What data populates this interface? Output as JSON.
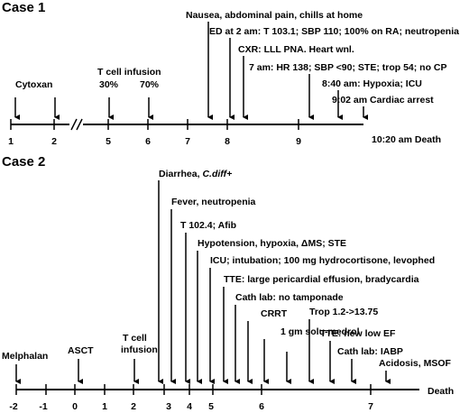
{
  "case1": {
    "title": "Case 1",
    "axis_end_label": "10:20 am Death",
    "ticks": [
      "1",
      "2",
      "5",
      "6",
      "7",
      "8",
      "9"
    ],
    "events": [
      {
        "text": "Cytoxan"
      },
      {
        "text": "T cell infusion"
      },
      {
        "text": "30%"
      },
      {
        "text": "70%"
      },
      {
        "text": "Nausea, abdominal pain, chills at home"
      },
      {
        "text": "ED at 2 am: T 103.1; SBP 110; 100% on RA; neutropenia"
      },
      {
        "text": "CXR: LLL PNA. Heart wnl."
      },
      {
        "text": "7 am: HR 138; SBP <90; STE; trop 54; no CP"
      },
      {
        "text": "8:40 am: Hypoxia; ICU"
      },
      {
        "text": "9:02 am Cardiac arrest"
      }
    ]
  },
  "case2": {
    "title": "Case 2",
    "axis_end_label": "Death",
    "ticks": [
      "-2",
      "-1",
      "0",
      "1",
      "2",
      "3",
      "4",
      "5",
      "6",
      "7"
    ],
    "events": [
      {
        "text": "Melphalan"
      },
      {
        "text": "ASCT"
      },
      {
        "text": "T cell"
      },
      {
        "text": "infusion"
      },
      {
        "text": "Diarrhea, ",
        "italic": "C.diff+"
      },
      {
        "text": "Fever, neutropenia"
      },
      {
        "text": "T 102.4; Afib"
      },
      {
        "text": "Hypotension, hypoxia, ΔMS; STE"
      },
      {
        "text": "ICU; intubation; 100 mg hydrocortisone, levophed"
      },
      {
        "text": "TTE: large pericardial effusion, bradycardia"
      },
      {
        "text": "Cath lab: no tamponade"
      },
      {
        "text": "CRRT"
      },
      {
        "text": "1 gm solu-medrol"
      },
      {
        "text": "Trop 1.2->13.75"
      },
      {
        "text": "TTE: new low EF"
      },
      {
        "text": "Cath lab: IABP"
      },
      {
        "text": "Acidosis, MSOF"
      }
    ]
  }
}
